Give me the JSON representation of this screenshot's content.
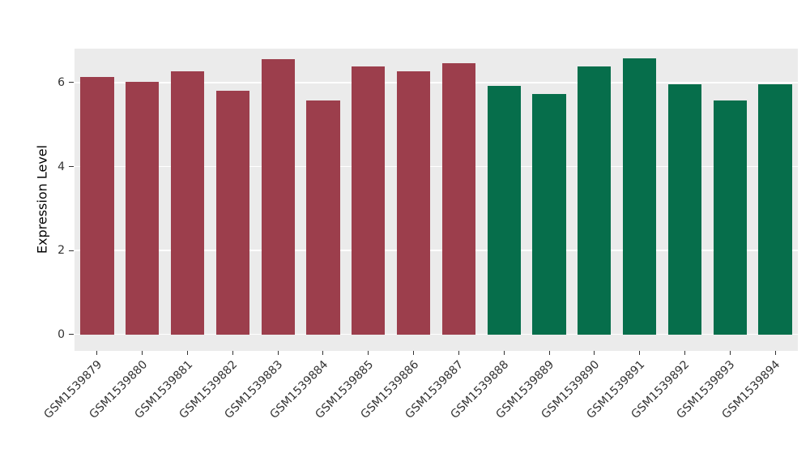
{
  "chart_data": {
    "type": "bar",
    "title": "",
    "xlabel": "",
    "ylabel": "Expression Level",
    "categories": [
      "GSM1539879",
      "GSM1539880",
      "GSM1539881",
      "GSM1539882",
      "GSM1539883",
      "GSM1539884",
      "GSM1539885",
      "GSM1539886",
      "GSM1539887",
      "GSM1539888",
      "GSM1539889",
      "GSM1539890",
      "GSM1539891",
      "GSM1539892",
      "GSM1539893",
      "GSM1539894"
    ],
    "values": [
      6.13,
      6.02,
      6.26,
      5.8,
      6.55,
      5.58,
      6.38,
      6.26,
      6.47,
      5.93,
      5.72,
      6.39,
      6.58,
      5.96,
      5.57,
      5.97
    ],
    "colors": [
      "#9C3E4C",
      "#9C3E4C",
      "#9C3E4C",
      "#9C3E4C",
      "#9C3E4C",
      "#9C3E4C",
      "#9C3E4C",
      "#9C3E4C",
      "#9C3E4C",
      "#066E4B",
      "#066E4B",
      "#066E4B",
      "#066E4B",
      "#066E4B",
      "#066E4B",
      "#066E4B"
    ],
    "groups": [
      {
        "name": "red-group",
        "color": "#9C3E4C",
        "count": 9
      },
      {
        "name": "green-group",
        "color": "#066E4B",
        "count": 7
      }
    ],
    "yticks": [
      0,
      2,
      4,
      6
    ],
    "ylim": [
      -0.39,
      6.81
    ],
    "grid": true,
    "grid_color": "#FFFFFF",
    "panel_background": "#EBEBEB",
    "legend": "none"
  }
}
